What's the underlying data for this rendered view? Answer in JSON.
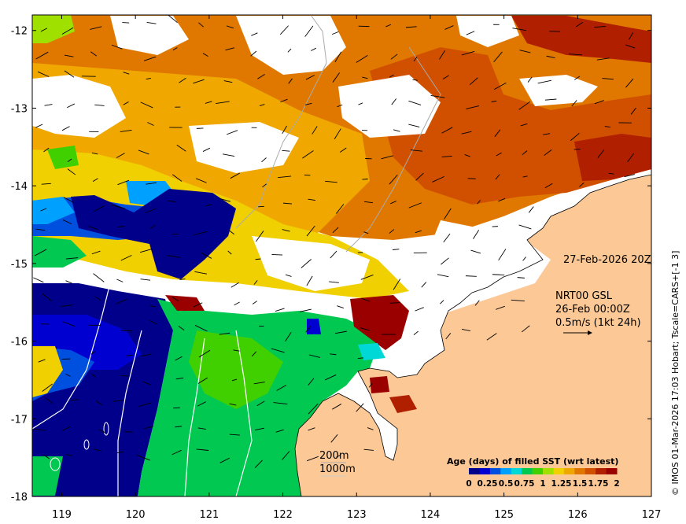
{
  "map": {
    "lon_ticks": [
      "119",
      "120",
      "121",
      "122",
      "123",
      "124",
      "125",
      "126",
      "127"
    ],
    "lat_ticks": [
      "-12",
      "-13",
      "-14",
      "-15",
      "-16",
      "-17",
      "-18"
    ],
    "extent": {
      "lon": [
        118.6,
        127.0
      ],
      "lat": [
        -18.0,
        -11.8
      ]
    }
  },
  "annotations": {
    "date": "27-Feb-2026 20Z",
    "product": "NRT00 GSL",
    "product_time": "26-Feb 00:00Z",
    "scale_arrow": "0.5m/s (1kt 24h)",
    "iso200": "200m",
    "iso1000": "1000m"
  },
  "legend": {
    "title": "Age (days) of filled SST (wrt latest)",
    "ticks": [
      "0",
      "0.25",
      "0.5",
      "0.75",
      "1",
      "1.25",
      "1.5",
      "1.75",
      "2"
    ],
    "colors": [
      "#00008b",
      "#0000d0",
      "#0050e0",
      "#00a0ff",
      "#00d8d8",
      "#00c850",
      "#40d000",
      "#a0e000",
      "#f0d000",
      "#f0a800",
      "#e07800",
      "#d05000",
      "#b02000",
      "#9b0000"
    ]
  },
  "credit": "© IMOS 01-Mar-2026 17:03 Hobart; Tscale=CARS+[-1 3]"
}
